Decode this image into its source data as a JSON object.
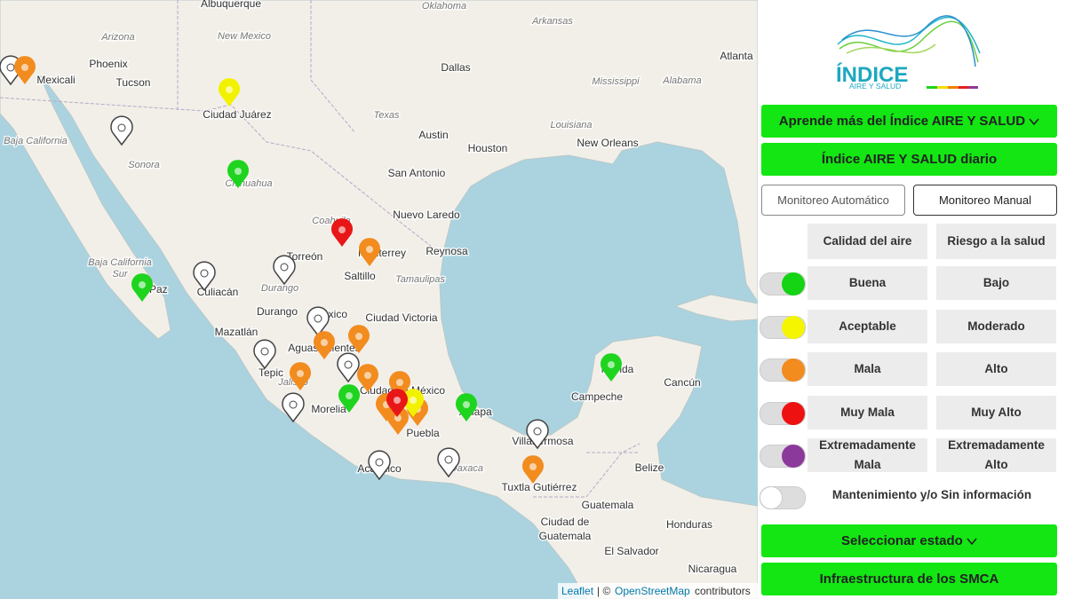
{
  "map": {
    "labels": [
      "Albuquerque",
      "Arizona",
      "New Mexico",
      "Oklahoma",
      "Arkansas",
      "Phoenix",
      "Mexicali",
      "Tucson",
      "Dallas",
      "Atlanta",
      "Mississippi",
      "Alabama",
      "Ciudad Juárez",
      "Texas",
      "Louisiana",
      "Baja California",
      "Austin",
      "Houston",
      "New Orleans",
      "Sonora",
      "San Antonio",
      "Chihuahua",
      "Nuevo Laredo",
      "Coahuila",
      "Monterrey",
      "Reynosa",
      "Baja California",
      "Sur",
      "Torreón",
      "Saltillo",
      "Tamaulipas",
      "La Paz",
      "Culiacán",
      "Durango",
      "Durango",
      "México",
      "Ciudad Victoria",
      "Mazatlán",
      "Aguascalientes",
      "Tepic",
      "Jalisco",
      "Morelia",
      "Ciudad de México",
      "Puebla",
      "Xalapa",
      "Mérida",
      "Campeche",
      "Cancún",
      "Villahermosa",
      "Acapulco",
      "Oaxaca",
      "Tuxtla Gutiérrez",
      "Belize",
      "Guatemala",
      "Ciudad de",
      "Guatemala",
      "Honduras",
      "El Salvador",
      "Nicaragua"
    ],
    "attribution": {
      "leaflet": "Leaflet",
      "separator": "| ©",
      "osm": "OpenStreetMap",
      "suffix": "contributors"
    }
  },
  "sidebar": {
    "logo": {
      "title": "ÍNDICE",
      "subtitle": "AIRE Y SALUD"
    },
    "learn_button": "Aprende más del Índice AIRE Y SALUD",
    "daily_button": "Índice AIRE Y SALUD diario",
    "tabs": [
      "Monitoreo Automático",
      "Monitoreo Manual"
    ],
    "headers": [
      "Calidad del aire",
      "Riesgo a la salud"
    ],
    "rows": [
      [
        "Buena",
        "Bajo"
      ],
      [
        "Aceptable",
        "Moderado"
      ],
      [
        "Mala",
        "Alto"
      ],
      [
        "Muy Mala",
        "Muy Alto"
      ],
      [
        "Extremadamente Mala",
        "Extremadamente Alto"
      ]
    ],
    "maintenance": "Mantenimiento y/o Sin información",
    "state_button": "Seleccionar estado",
    "infra_button": "Infraestructura de los SMCA"
  }
}
